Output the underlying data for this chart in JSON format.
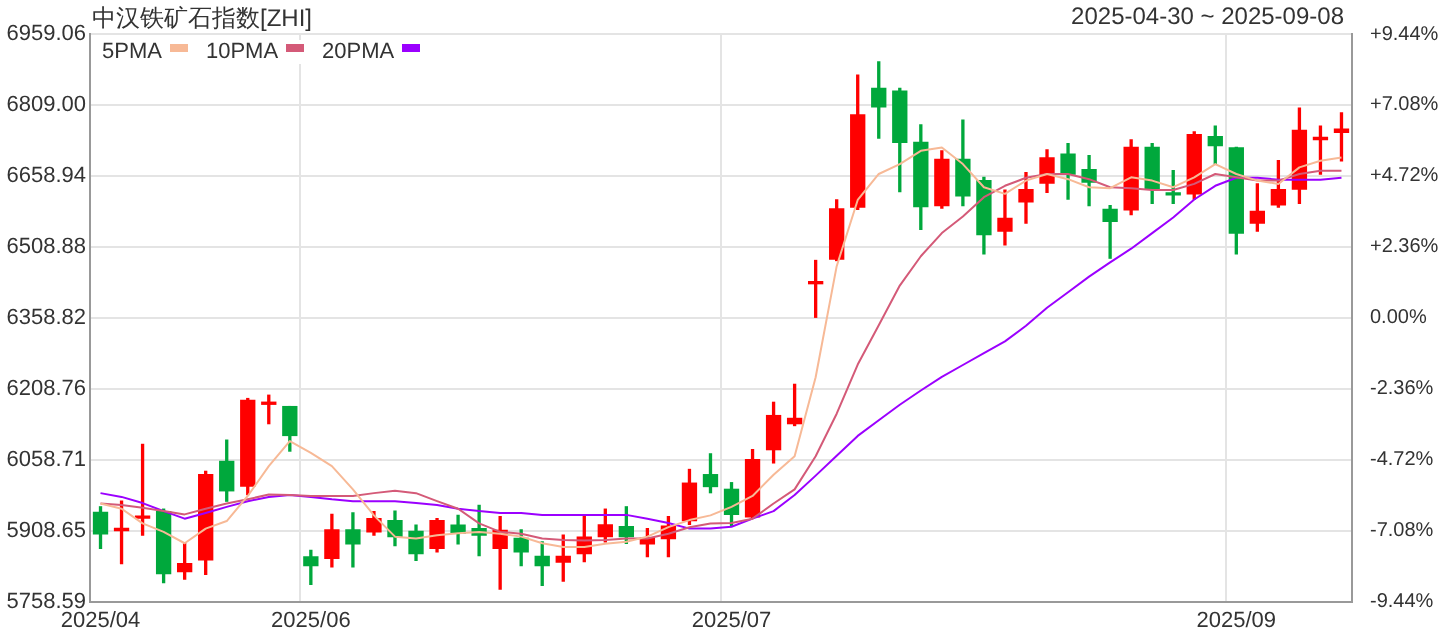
{
  "chart_data": {
    "type": "candlestick",
    "title": "中汉铁矿石指数[ZHI]",
    "subtitle": "2025-04-30 ~ 2025-09-08",
    "categories": [
      "2025/04",
      null,
      null,
      null,
      null,
      null,
      null,
      null,
      null,
      null,
      "2025/06",
      null,
      null,
      null,
      null,
      null,
      null,
      null,
      null,
      null,
      null,
      null,
      null,
      null,
      null,
      null,
      null,
      null,
      null,
      null,
      "2025/07",
      null,
      null,
      null,
      null,
      null,
      null,
      null,
      null,
      null,
      null,
      null,
      null,
      null,
      null,
      null,
      null,
      null,
      null,
      null,
      null,
      null,
      null,
      null,
      "2025/09",
      null,
      null,
      null,
      null,
      null
    ],
    "ohlc": [
      [
        5947,
        5959,
        5871,
        5902
      ],
      [
        5909,
        5971,
        5839,
        5911
      ],
      [
        5935,
        6091,
        5899,
        5938
      ],
      [
        5949,
        5954,
        5799,
        5818
      ],
      [
        5822,
        5881,
        5806,
        5839
      ],
      [
        5847,
        6034,
        5816,
        6027
      ],
      [
        6055,
        6100,
        5971,
        5993
      ],
      [
        6003,
        6188,
        5985,
        6184
      ],
      [
        6176,
        6195,
        6135,
        6178
      ],
      [
        6171,
        6171,
        6077,
        6110
      ],
      [
        5853,
        5867,
        5795,
        5835
      ],
      [
        5850,
        5943,
        5832,
        5910
      ],
      [
        5910,
        5946,
        5832,
        5881
      ],
      [
        5906,
        5949,
        5899,
        5934
      ],
      [
        5930,
        5950,
        5877,
        5896
      ],
      [
        5907,
        5920,
        5846,
        5860
      ],
      [
        5871,
        5934,
        5864,
        5930
      ],
      [
        5920,
        5941,
        5881,
        5903
      ],
      [
        5913,
        5962,
        5856,
        5899
      ],
      [
        5871,
        5938,
        5785,
        5909
      ],
      [
        5892,
        5910,
        5835,
        5864
      ],
      [
        5854,
        5885,
        5793,
        5835
      ],
      [
        5842,
        5899,
        5802,
        5854
      ],
      [
        5860,
        5941,
        5843,
        5895
      ],
      [
        5896,
        5954,
        5885,
        5921
      ],
      [
        5917,
        5959,
        5882,
        5896
      ],
      [
        5881,
        5913,
        5854,
        5893
      ],
      [
        5892,
        5938,
        5854,
        5918
      ],
      [
        5930,
        6038,
        5922,
        6009
      ],
      [
        6027,
        6071,
        5989,
        6002
      ],
      [
        5996,
        6010,
        5920,
        5943
      ],
      [
        5938,
        6080,
        5936,
        6059
      ],
      [
        6080,
        6180,
        6052,
        6152
      ],
      [
        6135,
        6218,
        6131,
        6146
      ],
      [
        6431,
        6480,
        6360,
        6434
      ],
      [
        6483,
        6608,
        6480,
        6589
      ],
      [
        6593,
        6872,
        6588,
        6788
      ],
      [
        6844,
        6900,
        6739,
        6805
      ],
      [
        6838,
        6844,
        6626,
        6730
      ],
      [
        6730,
        6767,
        6546,
        6594
      ],
      [
        6596,
        6712,
        6591,
        6694
      ],
      [
        6694,
        6777,
        6596,
        6617
      ],
      [
        6649,
        6656,
        6494,
        6535
      ],
      [
        6542,
        6629,
        6513,
        6569
      ],
      [
        6604,
        6666,
        6559,
        6630
      ],
      [
        6644,
        6714,
        6624,
        6697
      ],
      [
        6705,
        6727,
        6610,
        6663
      ],
      [
        6672,
        6702,
        6596,
        6646
      ],
      [
        6588,
        6596,
        6485,
        6563
      ],
      [
        6587,
        6735,
        6577,
        6719
      ],
      [
        6719,
        6727,
        6601,
        6631
      ],
      [
        6621,
        6670,
        6601,
        6619
      ],
      [
        6621,
        6752,
        6610,
        6746
      ],
      [
        6742,
        6764,
        6684,
        6723
      ],
      [
        6718,
        6719,
        6494,
        6538
      ],
      [
        6559,
        6642,
        6542,
        6584
      ],
      [
        6598,
        6691,
        6593,
        6630
      ],
      [
        6631,
        6802,
        6601,
        6755
      ],
      [
        6736,
        6764,
        6663,
        6738
      ],
      [
        6751,
        6792,
        6691,
        6758
      ]
    ],
    "colors": [
      "#00a83c",
      "#ff0000",
      "#ff0000",
      "#00a83c",
      "#ff0000",
      "#ff0000",
      "#00a83c",
      "#ff0000",
      "#ff0000",
      "#00a83c",
      "#00a83c",
      "#ff0000",
      "#00a83c",
      "#ff0000",
      "#00a83c",
      "#00a83c",
      "#ff0000",
      "#00a83c",
      "#00a83c",
      "#ff0000",
      "#00a83c",
      "#00a83c",
      "#ff0000",
      "#ff0000",
      "#ff0000",
      "#00a83c",
      "#ff0000",
      "#ff0000",
      "#ff0000",
      "#00a83c",
      "#00a83c",
      "#ff0000",
      "#ff0000",
      "#ff0000",
      "#ff0000",
      "#ff0000",
      "#ff0000",
      "#00a83c",
      "#00a83c",
      "#00a83c",
      "#ff0000",
      "#00a83c",
      "#00a83c",
      "#ff0000",
      "#ff0000",
      "#ff0000",
      "#00a83c",
      "#00a83c",
      "#00a83c",
      "#ff0000",
      "#00a83c",
      "#00a83c",
      "#ff0000",
      "#00a83c",
      "#00a83c",
      "#ff0000",
      "#ff0000",
      "#ff0000",
      "#ff0000",
      "#ff0000"
    ],
    "series": [
      {
        "type": "line",
        "name": "5PMA",
        "color": "#f7b996",
        "values": [
          5966,
          5955,
          5924,
          5906,
          5882,
          5913,
          5929,
          5982,
          6045,
          6098,
          6073,
          6045,
          5996,
          5941,
          5896,
          5892,
          5899,
          5903,
          5906,
          5902,
          5896,
          5882,
          5874,
          5874,
          5881,
          5885,
          5896,
          5916,
          5931,
          5941,
          5959,
          5982,
          6027,
          6066,
          6233,
          6468,
          6608,
          6663,
          6684,
          6712,
          6719,
          6684,
          6635,
          6621,
          6649,
          6663,
          6652,
          6635,
          6633,
          6656,
          6649,
          6635,
          6656,
          6684,
          6663,
          6649,
          6642,
          6677,
          6691,
          6698
        ]
      },
      {
        "type": "line",
        "name": "10PMA",
        "color": "#d45a78",
        "values": [
          5966,
          5963,
          5957,
          5950,
          5943,
          5955,
          5966,
          5975,
          5985,
          5984,
          5982,
          5982,
          5982,
          5988,
          5993,
          5988,
          5971,
          5955,
          5924,
          5906,
          5902,
          5892,
          5889,
          5888,
          5889,
          5892,
          5892,
          5902,
          5916,
          5924,
          5925,
          5934,
          5966,
          5996,
          6066,
          6156,
          6260,
          6343,
          6427,
          6489,
          6538,
          6573,
          6614,
          6638,
          6655,
          6663,
          6663,
          6652,
          6635,
          6633,
          6629,
          6629,
          6642,
          6663,
          6656,
          6649,
          6649,
          6663,
          6670,
          6670
        ]
      },
      {
        "type": "line",
        "name": "20PMA",
        "color": "#9b00ff",
        "values": [
          5988,
          5980,
          5967,
          5950,
          5934,
          5946,
          5959,
          5971,
          5980,
          5984,
          5980,
          5975,
          5971,
          5971,
          5971,
          5967,
          5963,
          5955,
          5950,
          5946,
          5946,
          5942,
          5942,
          5942,
          5942,
          5942,
          5934,
          5925,
          5913,
          5913,
          5917,
          5934,
          5950,
          5984,
          6025,
          6067,
          6109,
          6142,
          6175,
          6205,
          6234,
          6259,
          6284,
          6309,
          6342,
          6380,
          6413,
          6446,
          6476,
          6505,
          6538,
          6571,
          6609,
          6638,
          6655,
          6655,
          6651,
          6651,
          6651,
          6655
        ]
      }
    ],
    "ylim": [
      5758.59,
      6959.06
    ],
    "yticks": [
      5758.59,
      5908.65,
      6058.71,
      6208.76,
      6358.82,
      6508.88,
      6658.94,
      {
        "value": 6809,
        "label": "6809.00"
      },
      6959.06
    ],
    "y2lim": [
      -9.44,
      9.44
    ],
    "y2ticks": [
      {
        "value": -9.44,
        "label": "-9.44%"
      },
      {
        "value": -7.08,
        "label": "-7.08%"
      },
      {
        "value": -4.72,
        "label": "-4.72%"
      },
      {
        "value": -2.36,
        "label": "-2.36%"
      },
      {
        "value": 0,
        "label": "0.00%"
      },
      {
        "value": 2.36,
        "label": "+2.36%"
      },
      {
        "value": 4.72,
        "label": "+4.72%"
      },
      {
        "value": 7.08,
        "label": "+7.08%"
      },
      {
        "value": 9.44,
        "label": "+9.44%"
      }
    ],
    "grid": true,
    "legend": "top left"
  }
}
